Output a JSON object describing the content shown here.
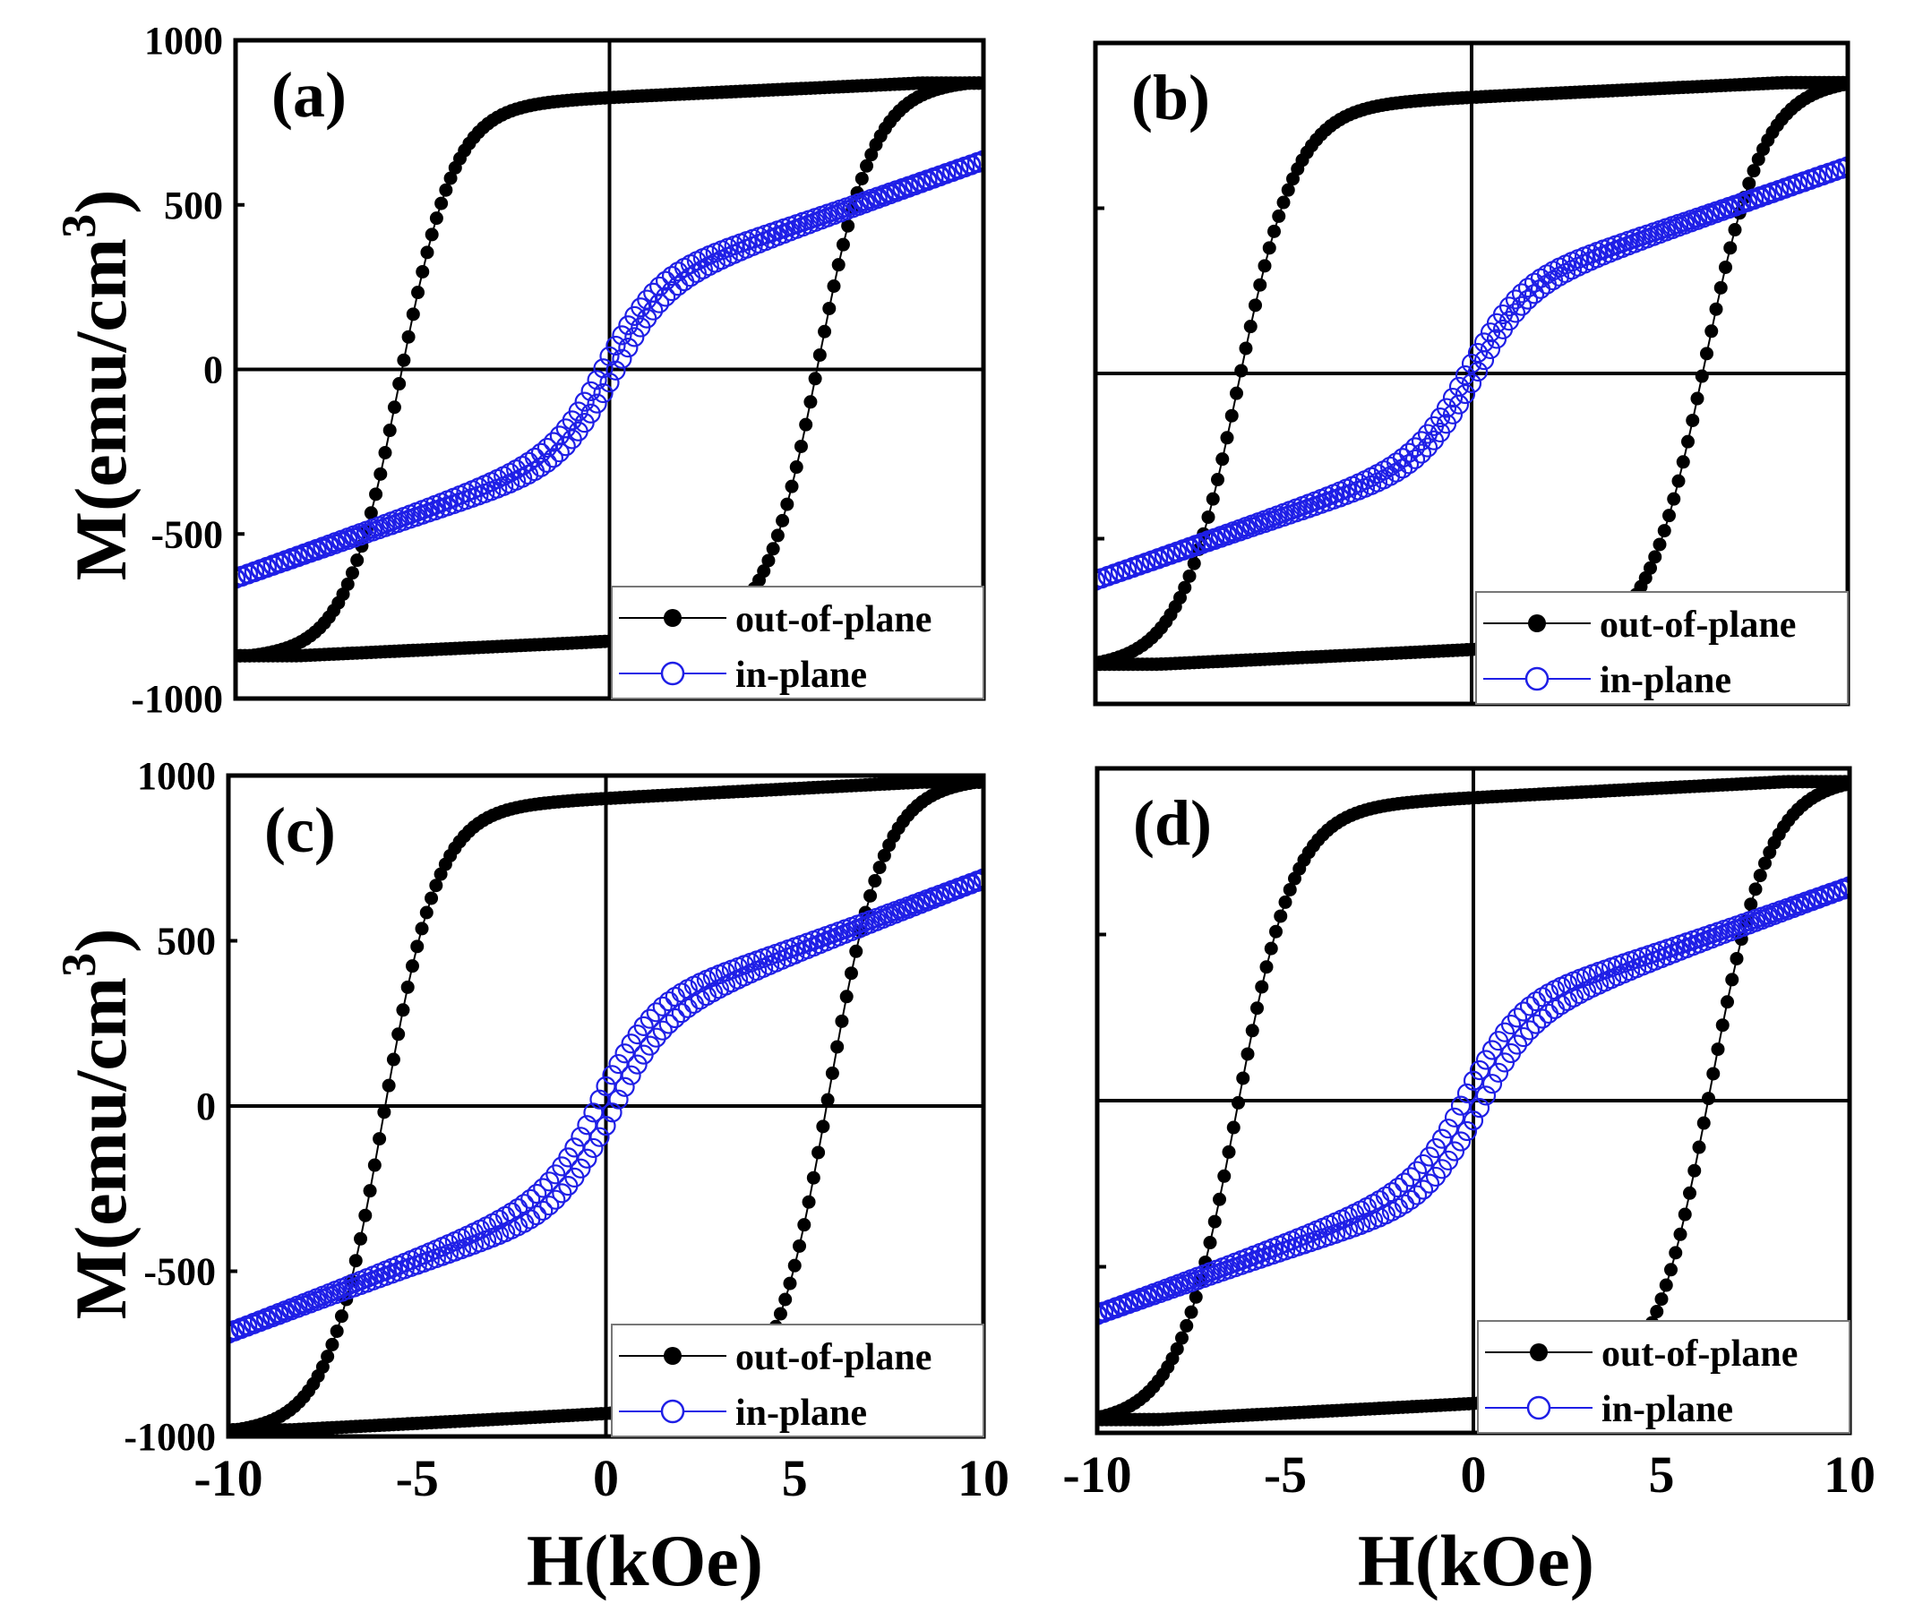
{
  "figure": {
    "ylabel_prefix": "M(emu/cm",
    "ylabel_sup": "3",
    "ylabel_suffix": ")",
    "xlabel": "H(kOe)"
  },
  "colors": {
    "out_of_plane": "#000000",
    "in_plane": "#1f1fe6",
    "axes": "#000000"
  },
  "chart_data": [
    {
      "type": "scatter",
      "panel": "(a)",
      "xlim": [
        -10,
        10
      ],
      "ylim": [
        -1000,
        1000
      ],
      "x_ticks": [],
      "y_ticks": [
        -1000,
        -500,
        0,
        500,
        1000
      ],
      "legend": {
        "placement": "bottom-right",
        "entries": [
          "out-of-plane",
          "in-plane"
        ]
      },
      "series": [
        {
          "name": "out-of-plane",
          "marker": "filled-circle",
          "Ms": 870,
          "Hc": 5.6,
          "squareness": 0.93,
          "width": 0.8
        },
        {
          "name": "in-plane",
          "marker": "open-circle",
          "M_at_10kOe": 730,
          "remanence": 40
        }
      ]
    },
    {
      "type": "scatter",
      "panel": "(b)",
      "xlim": [
        -10,
        10
      ],
      "ylim": [
        -1000,
        1000
      ],
      "x_ticks": [],
      "y_ticks": [],
      "legend": {
        "placement": "bottom-right",
        "entries": [
          "out-of-plane",
          "in-plane"
        ]
      },
      "series": [
        {
          "name": "out-of-plane",
          "marker": "filled-circle",
          "Ms": 880,
          "Hc": 6.2,
          "squareness": 0.91,
          "width": 0.85
        },
        {
          "name": "in-plane",
          "marker": "open-circle",
          "M_at_10kOe": 720,
          "remanence": 30
        }
      ]
    },
    {
      "type": "scatter",
      "panel": "(c)",
      "xlim": [
        -10,
        10
      ],
      "ylim": [
        -1000,
        1000
      ],
      "x_ticks": [
        -10,
        -5,
        0,
        5,
        10
      ],
      "y_ticks": [
        -1000,
        -500,
        0,
        500,
        1000
      ],
      "legend": {
        "placement": "bottom-right",
        "entries": [
          "out-of-plane",
          "in-plane"
        ]
      },
      "series": [
        {
          "name": "out-of-plane",
          "marker": "filled-circle",
          "Ms": 980,
          "Hc": 5.9,
          "squareness": 0.9,
          "width": 0.8
        },
        {
          "name": "in-plane",
          "marker": "open-circle",
          "M_at_10kOe": 790,
          "remanence": 60
        }
      ]
    },
    {
      "type": "scatter",
      "panel": "(d)",
      "xlim": [
        -10,
        10
      ],
      "ylim": [
        -1000,
        1000
      ],
      "x_ticks": [
        -10,
        -5,
        0,
        5,
        10
      ],
      "y_ticks": [],
      "legend": {
        "placement": "bottom-right",
        "entries": [
          "out-of-plane",
          "in-plane"
        ]
      },
      "series": [
        {
          "name": "out-of-plane",
          "marker": "filled-circle",
          "Ms": 960,
          "Hc": 6.3,
          "squareness": 0.92,
          "width": 0.85
        },
        {
          "name": "in-plane",
          "marker": "open-circle",
          "M_at_10kOe": 740,
          "remanence": 60
        }
      ]
    }
  ]
}
